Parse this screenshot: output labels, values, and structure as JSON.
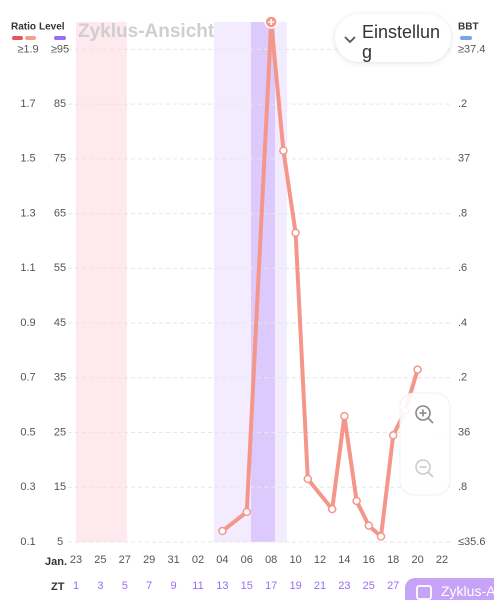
{
  "chart_data": {
    "type": "line",
    "title": "Zyklus-Ansicht",
    "settings_label": "Einstellung",
    "bottom_button": "Zyklus-Ansicht",
    "ratio_axis": {
      "label": "Ratio",
      "colors": [
        "#e5535c",
        "#f3a08a"
      ],
      "lim": [
        0.1,
        2.0
      ],
      "ticks": [
        {
          "value": 1.9,
          "label": "≥1.9"
        },
        1.7,
        1.5,
        1.3,
        1.1,
        0.9,
        0.7,
        0.5,
        0.3,
        0.1
      ]
    },
    "ylabel": "Level",
    "level_color": "#9b6cf5",
    "ylim": [
      5,
      100
    ],
    "yticks": [
      {
        "value": 95,
        "label": "≥95"
      },
      85,
      75,
      65,
      55,
      45,
      35,
      25,
      15,
      5
    ],
    "y2label": "BBT",
    "bbt_color": "#7aa3f0",
    "y2lim": [
      35.6,
      37.5
    ],
    "y2ticks": [
      {
        "value": 37.4,
        "label": "≥37.4"
      },
      {
        "value": 37.2,
        "label": ".2"
      },
      37,
      {
        "value": 36.8,
        "label": ".8"
      },
      {
        "value": 36.6,
        "label": ".6"
      },
      {
        "value": 36.4,
        "label": ".4"
      },
      {
        "value": 36.2,
        "label": ".2"
      },
      36,
      {
        "value": 35.8,
        "label": ".8"
      },
      {
        "value": 35.6,
        "label": "≤35.6"
      }
    ],
    "grid": true,
    "month_label": "Jan.",
    "categories": [
      "23",
      null,
      "25",
      null,
      "27",
      null,
      "29",
      null,
      "31",
      null,
      "02",
      null,
      "04",
      null,
      "06",
      null,
      "08",
      null,
      "10",
      null,
      "12",
      null,
      "14",
      null,
      "16",
      null,
      "18",
      null,
      "20",
      null,
      "22"
    ],
    "zt_label": "ZT",
    "zt": [
      1,
      3,
      5,
      7,
      9,
      11,
      13,
      15,
      17,
      19,
      21,
      23,
      25,
      27
    ],
    "zt_color": "#9b6cf5",
    "series": [
      {
        "color": "#f4978a",
        "values": [
          null,
          null,
          null,
          null,
          null,
          null,
          null,
          null,
          null,
          null,
          null,
          null,
          7,
          null,
          10.5,
          null,
          100,
          76.5,
          61.5,
          16.5,
          null,
          11,
          28,
          12.5,
          8,
          6,
          24.5,
          29,
          36.5,
          null,
          null
        ]
      }
    ]
  }
}
